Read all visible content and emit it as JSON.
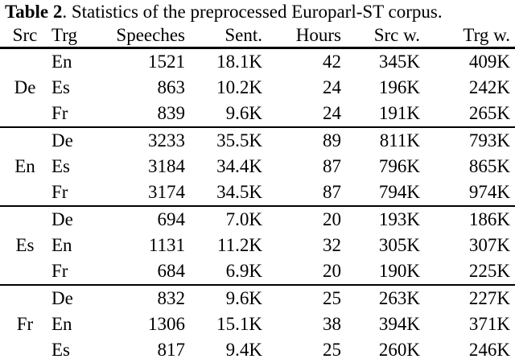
{
  "caption": {
    "label": "Table 2",
    "text": ". Statistics of the preprocessed Europarl-ST corpus."
  },
  "headers": {
    "src": "Src",
    "trg": "Trg",
    "speeches": "Speeches",
    "sent": "Sent.",
    "hours": "Hours",
    "src_words": "Src w.",
    "trg_words": "Trg w."
  },
  "groups": [
    {
      "src": "De",
      "rows": [
        {
          "trg": "En",
          "speeches": "1521",
          "sent": "18.1K",
          "hours": "42",
          "src_words": "345K",
          "trg_words": "409K"
        },
        {
          "trg": "Es",
          "speeches": "863",
          "sent": "10.2K",
          "hours": "24",
          "src_words": "196K",
          "trg_words": "242K"
        },
        {
          "trg": "Fr",
          "speeches": "839",
          "sent": "9.6K",
          "hours": "24",
          "src_words": "191K",
          "trg_words": "265K"
        }
      ]
    },
    {
      "src": "En",
      "rows": [
        {
          "trg": "De",
          "speeches": "3233",
          "sent": "35.5K",
          "hours": "89",
          "src_words": "811K",
          "trg_words": "793K"
        },
        {
          "trg": "Es",
          "speeches": "3184",
          "sent": "34.4K",
          "hours": "87",
          "src_words": "796K",
          "trg_words": "865K"
        },
        {
          "trg": "Fr",
          "speeches": "3174",
          "sent": "34.5K",
          "hours": "87",
          "src_words": "794K",
          "trg_words": "974K"
        }
      ]
    },
    {
      "src": "Es",
      "rows": [
        {
          "trg": "De",
          "speeches": "694",
          "sent": "7.0K",
          "hours": "20",
          "src_words": "193K",
          "trg_words": "186K"
        },
        {
          "trg": "En",
          "speeches": "1131",
          "sent": "11.2K",
          "hours": "32",
          "src_words": "305K",
          "trg_words": "307K"
        },
        {
          "trg": "Fr",
          "speeches": "684",
          "sent": "6.9K",
          "hours": "20",
          "src_words": "190K",
          "trg_words": "225K"
        }
      ]
    },
    {
      "src": "Fr",
      "rows": [
        {
          "trg": "De",
          "speeches": "832",
          "sent": "9.6K",
          "hours": "25",
          "src_words": "263K",
          "trg_words": "227K"
        },
        {
          "trg": "En",
          "speeches": "1306",
          "sent": "15.1K",
          "hours": "38",
          "src_words": "394K",
          "trg_words": "371K"
        },
        {
          "trg": "Es",
          "speeches": "817",
          "sent": "9.4K",
          "hours": "25",
          "src_words": "260K",
          "trg_words": "246K"
        }
      ]
    }
  ]
}
